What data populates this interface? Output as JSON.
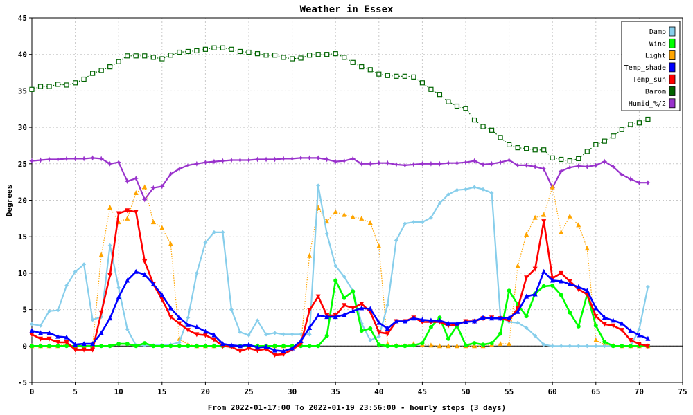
{
  "chart_data": {
    "type": "line",
    "title": "Weather in Essex",
    "xlabel": "From 2022-01-17:00 To 2022-01-19 23:56:00 - hourly steps (3 days)",
    "ylabel": "Degrees",
    "xlim": [
      0,
      75
    ],
    "ylim": [
      -5,
      45
    ],
    "xticks": [
      0,
      5,
      10,
      15,
      20,
      25,
      30,
      35,
      40,
      45,
      50,
      55,
      60,
      65,
      70,
      75
    ],
    "yticks": [
      -5,
      0,
      5,
      10,
      15,
      20,
      25,
      30,
      35,
      40,
      45
    ],
    "grid": true,
    "legend_position": "top-right",
    "x": [
      0,
      1,
      2,
      3,
      4,
      5,
      6,
      7,
      8,
      9,
      10,
      11,
      12,
      13,
      14,
      15,
      16,
      17,
      18,
      19,
      20,
      21,
      22,
      23,
      24,
      25,
      26,
      27,
      28,
      29,
      30,
      31,
      32,
      33,
      34,
      35,
      36,
      37,
      38,
      39,
      40,
      41,
      42,
      43,
      44,
      45,
      46,
      47,
      48,
      49,
      50,
      51,
      52,
      53,
      54,
      55,
      56,
      57,
      58,
      59,
      60,
      61,
      62,
      63,
      64,
      65,
      66,
      67,
      68,
      69,
      70,
      71
    ],
    "series": [
      {
        "name": "Damp",
        "color": "#87ceeb",
        "style": "solid",
        "marker": "diamond",
        "values": [
          3.0,
          2.8,
          4.8,
          4.9,
          8.3,
          10.2,
          11.2,
          3.6,
          4.0,
          13.8,
          8.0,
          2.3,
          0.1,
          0.1,
          0.1,
          0.1,
          0.2,
          0.5,
          3.9,
          10.0,
          14.2,
          15.6,
          15.6,
          5.0,
          1.9,
          1.5,
          3.5,
          1.6,
          1.8,
          1.6,
          1.6,
          1.6,
          1.6,
          22.0,
          15.4,
          11.0,
          9.5,
          7.6,
          3.1,
          0.8,
          1.3,
          5.6,
          14.5,
          16.8,
          17.0,
          17.0,
          17.6,
          19.6,
          20.8,
          21.4,
          21.5,
          21.8,
          21.5,
          21.0,
          4.0,
          3.3,
          3.2,
          2.5,
          1.4,
          0.2,
          0.0,
          0.0,
          0.0,
          0.0,
          0.0,
          0.0,
          0.0,
          0.0,
          0.0,
          0.0,
          2.3,
          8.1
        ]
      },
      {
        "name": "Wind",
        "color": "#00ff00",
        "style": "solid",
        "marker": "circle",
        "values": [
          0.0,
          0.0,
          0.0,
          0.0,
          0.0,
          0.0,
          0.0,
          0.0,
          0.0,
          0.0,
          0.3,
          0.3,
          0.0,
          0.4,
          0.0,
          0.0,
          0.0,
          0.0,
          0.0,
          0.0,
          0.0,
          0.0,
          0.0,
          0.0,
          0.0,
          0.0,
          0.0,
          0.0,
          0.0,
          0.0,
          0.0,
          0.0,
          0.0,
          0.0,
          1.4,
          9.0,
          6.6,
          7.5,
          2.1,
          2.4,
          0.2,
          0.0,
          0.0,
          0.0,
          0.1,
          0.4,
          2.6,
          3.9,
          1.0,
          2.8,
          0.1,
          0.4,
          0.2,
          0.4,
          1.7,
          7.6,
          5.7,
          4.1,
          7.2,
          8.2,
          8.3,
          7.0,
          4.6,
          2.7,
          7.1,
          2.8,
          0.6,
          0.0,
          0.0,
          0.0,
          0.0,
          0.0
        ]
      },
      {
        "name": "Light",
        "color": "#ffa500",
        "style": "dotted",
        "marker": "triangle-up",
        "values": [
          0.0,
          0.0,
          0.0,
          0.0,
          0.3,
          0.0,
          0.0,
          0.0,
          12.5,
          19.0,
          17.0,
          17.5,
          21.0,
          21.8,
          17.0,
          16.2,
          14.0,
          1.0,
          0.2,
          0.0,
          0.0,
          0.0,
          0.1,
          0.0,
          0.0,
          0.0,
          0.0,
          0.0,
          0.0,
          0.0,
          0.0,
          0.2,
          12.4,
          19.0,
          17.1,
          18.4,
          18.0,
          17.7,
          17.5,
          16.9,
          13.7,
          0.3,
          0.1,
          0.1,
          0.3,
          0.2,
          0.1,
          0.0,
          0.0,
          0.0,
          0.0,
          0.0,
          0.0,
          0.2,
          0.3,
          0.3,
          11.0,
          15.3,
          17.6,
          18.0,
          21.8,
          15.6,
          17.8,
          16.6,
          13.4,
          0.8,
          0.2,
          0.1,
          0.0,
          0.0,
          0.0,
          0.0
        ]
      },
      {
        "name": "Temp_shade",
        "color": "#0000ff",
        "style": "solid",
        "marker": "triangle-up",
        "values": [
          2.1,
          1.8,
          1.8,
          1.3,
          1.2,
          0.2,
          0.3,
          0.3,
          1.8,
          3.8,
          6.7,
          9.0,
          10.2,
          9.8,
          8.5,
          7.0,
          5.2,
          3.9,
          2.9,
          2.6,
          2.0,
          1.5,
          0.3,
          0.1,
          0.0,
          0.2,
          -0.2,
          -0.1,
          -0.6,
          -0.7,
          -0.3,
          0.7,
          2.5,
          4.2,
          4.0,
          4.0,
          4.3,
          4.8,
          5.2,
          5.1,
          3.2,
          2.4,
          3.4,
          3.4,
          3.8,
          3.6,
          3.5,
          3.5,
          3.1,
          3.1,
          3.3,
          3.4,
          3.9,
          3.8,
          3.8,
          3.9,
          4.7,
          6.8,
          7.1,
          10.2,
          9.0,
          8.9,
          8.5,
          8.1,
          7.6,
          5.2,
          3.9,
          3.5,
          3.1,
          2.1,
          1.5,
          1.0
        ]
      },
      {
        "name": "Temp_sun",
        "color": "#ff0000",
        "style": "solid",
        "marker": "triangle-down",
        "values": [
          1.6,
          1.0,
          1.0,
          0.5,
          0.5,
          -0.5,
          -0.5,
          -0.5,
          4.6,
          9.7,
          18.2,
          18.6,
          18.4,
          11.6,
          8.5,
          6.4,
          4.0,
          3.1,
          2.2,
          1.6,
          1.5,
          0.9,
          0.0,
          -0.1,
          -0.7,
          -0.3,
          -0.6,
          -0.4,
          -1.2,
          -1.1,
          -0.5,
          0.3,
          4.9,
          6.8,
          4.2,
          4.2,
          5.6,
          5.2,
          5.8,
          4.7,
          1.9,
          1.7,
          3.4,
          3.4,
          3.9,
          3.3,
          3.3,
          3.3,
          2.8,
          2.9,
          3.4,
          3.4,
          3.8,
          3.9,
          3.8,
          3.5,
          5.2,
          9.4,
          10.6,
          17.1,
          9.3,
          10.0,
          8.9,
          7.8,
          7.1,
          4.1,
          3.0,
          2.8,
          2.2,
          0.8,
          0.3,
          0.0
        ]
      },
      {
        "name": "Barom",
        "color": "#006400",
        "style": "dotted",
        "marker": "square",
        "values": [
          35.2,
          35.6,
          35.6,
          35.9,
          35.8,
          36.1,
          36.6,
          37.4,
          37.8,
          38.3,
          39.0,
          39.8,
          39.8,
          39.8,
          39.6,
          39.4,
          39.9,
          40.3,
          40.4,
          40.5,
          40.7,
          40.9,
          40.9,
          40.7,
          40.4,
          40.3,
          40.1,
          39.9,
          39.9,
          39.6,
          39.4,
          39.5,
          39.9,
          40.0,
          40.0,
          40.1,
          39.6,
          38.9,
          38.3,
          37.9,
          37.3,
          37.1,
          37.0,
          37.0,
          36.9,
          36.1,
          35.2,
          34.5,
          33.5,
          32.9,
          32.6,
          31.0,
          30.1,
          29.6,
          28.6,
          27.6,
          27.2,
          27.1,
          26.9,
          26.9,
          25.8,
          25.6,
          25.4,
          25.7,
          26.7,
          27.6,
          28.1,
          28.8,
          29.7,
          30.4,
          30.6,
          31.1
        ]
      },
      {
        "name": "Humid_%/2",
        "color": "#9932cc",
        "style": "solid",
        "marker": "star",
        "values": [
          25.4,
          25.5,
          25.6,
          25.6,
          25.7,
          25.7,
          25.7,
          25.8,
          25.7,
          25.0,
          25.2,
          22.6,
          23.0,
          20.1,
          21.7,
          21.9,
          23.6,
          24.3,
          24.8,
          25.0,
          25.2,
          25.3,
          25.4,
          25.5,
          25.5,
          25.5,
          25.6,
          25.6,
          25.6,
          25.7,
          25.7,
          25.8,
          25.8,
          25.8,
          25.6,
          25.3,
          25.4,
          25.7,
          25.0,
          25.0,
          25.1,
          25.1,
          24.9,
          24.8,
          24.9,
          25.0,
          25.0,
          25.0,
          25.1,
          25.1,
          25.2,
          25.4,
          24.9,
          25.0,
          25.2,
          25.5,
          24.8,
          24.8,
          24.6,
          24.3,
          21.7,
          24.0,
          24.5,
          24.7,
          24.6,
          24.8,
          25.3,
          24.6,
          23.5,
          22.9,
          22.4,
          22.4
        ]
      }
    ]
  }
}
